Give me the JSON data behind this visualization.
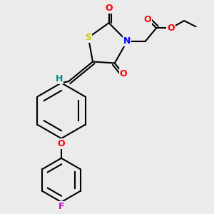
{
  "bg_color": "#ebebeb",
  "atom_colors": {
    "S": "#cccc00",
    "N": "#0000ff",
    "O": "#ff0000",
    "F": "#cc00cc",
    "H": "#008888",
    "C": "#000000"
  },
  "bond_color": "#000000",
  "bond_width": 1.5,
  "font_size": 9,
  "figsize": [
    3.0,
    3.0
  ],
  "dpi": 100
}
